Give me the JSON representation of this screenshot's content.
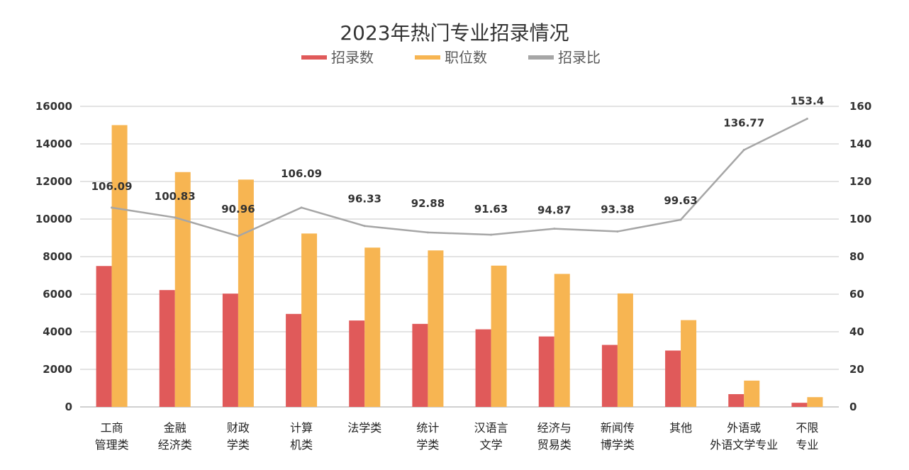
{
  "chart_data": {
    "type": "bar",
    "title": "2023年热门专业招录情况",
    "categories": [
      [
        "工商",
        "管理类"
      ],
      [
        "金融",
        "经济类"
      ],
      [
        "财政",
        "学类"
      ],
      [
        "计算",
        "机类"
      ],
      [
        "法学类"
      ],
      [
        "统计",
        "学类"
      ],
      [
        "汉语言",
        "文学"
      ],
      [
        "经济与",
        "贸易类"
      ],
      [
        "新闻传",
        "博学类"
      ],
      [
        "其他"
      ],
      [
        "外语或",
        "外语文学专业"
      ],
      [
        "不限",
        "专业"
      ]
    ],
    "series": [
      {
        "name": "招录数",
        "type": "bar",
        "axis": "left",
        "color": "#e05a5a",
        "values": [
          7500,
          6220,
          6030,
          4950,
          4600,
          4420,
          4130,
          3750,
          3300,
          3000,
          680,
          220
        ]
      },
      {
        "name": "职位数",
        "type": "bar",
        "axis": "left",
        "color": "#f7b552",
        "values": [
          15000,
          12500,
          12100,
          9230,
          8480,
          8330,
          7520,
          7080,
          6040,
          4620,
          1400,
          520
        ]
      },
      {
        "name": "招录比",
        "type": "line",
        "axis": "right",
        "color": "#a6a6a6",
        "values": [
          106.09,
          100.83,
          90.96,
          106.09,
          96.33,
          92.88,
          91.63,
          94.87,
          93.38,
          99.63,
          136.77,
          153.4
        ],
        "labels": [
          "106.09",
          "100.83",
          "90.96",
          "106.09",
          "96.33",
          "92.88",
          "91.63",
          "94.87",
          "93.38",
          "99.63",
          "136.77",
          "153.4"
        ]
      }
    ],
    "y_left": {
      "min": 0,
      "max": 16000,
      "ticks": [
        "0",
        "2000",
        "4000",
        "6000",
        "8000",
        "10000",
        "12000",
        "14000",
        "16000"
      ]
    },
    "y_right": {
      "min": 0,
      "max": 160,
      "ticks": [
        "0",
        "20",
        "40",
        "60",
        "80",
        "100",
        "120",
        "140",
        "160"
      ]
    },
    "grid": true,
    "legend_position": "top"
  }
}
